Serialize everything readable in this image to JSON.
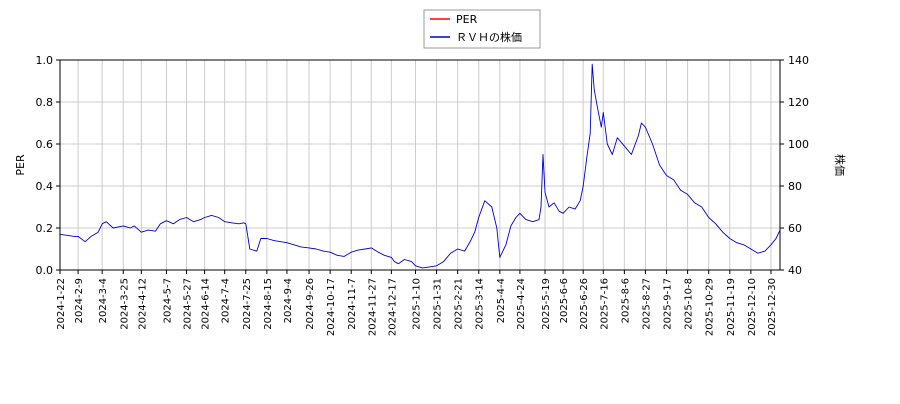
{
  "chart_data": {
    "type": "line",
    "title": "",
    "legend": {
      "placement": "top-center",
      "entries": [
        {
          "name": "PER",
          "color": "#ff0000"
        },
        {
          "name": "ＲＶＨの株価",
          "color": "#0000cd"
        }
      ]
    },
    "grid": true,
    "y_left": {
      "label": "PER",
      "ylim": [
        0.0,
        1.0
      ],
      "ticks": [
        "0.0",
        "0.2",
        "0.4",
        "0.6",
        "0.8",
        "1.0"
      ]
    },
    "y_right": {
      "label": "株価",
      "ylim": [
        40,
        140
      ],
      "ticks": [
        "40",
        "60",
        "80",
        "100",
        "120",
        "140"
      ]
    },
    "x": {
      "xlim": [
        "2024-01-22",
        "2026-01-08"
      ],
      "ticks": [
        "2024-1-22",
        "2024-2-9",
        "2024-3-4",
        "2024-3-25",
        "2024-4-12",
        "2024-5-7",
        "2024-5-27",
        "2024-6-14",
        "2024-7-4",
        "2024-7-25",
        "2024-8-15",
        "2024-9-4",
        "2024-9-26",
        "2024-10-17",
        "2024-11-7",
        "2024-11-27",
        "2024-12-17",
        "2025-1-10",
        "2025-1-31",
        "2025-2-21",
        "2025-3-14",
        "2025-4-4",
        "2025-4-24",
        "2025-5-19",
        "2025-6-6",
        "2025-6-26",
        "2025-7-16",
        "2025-8-6",
        "2025-8-27",
        "2025-9-17",
        "2025-10-8",
        "2025-10-29",
        "2025-11-19",
        "2025-12-10",
        "2025-12-30"
      ]
    },
    "series": [
      {
        "name": "ＲＶＨの株価",
        "axis": "right",
        "color": "#0000cd",
        "points": [
          [
            "2024-01-22",
            57
          ],
          [
            "2024-01-29",
            56.5
          ],
          [
            "2024-02-05",
            56
          ],
          [
            "2024-02-09",
            56
          ],
          [
            "2024-02-16",
            53.5
          ],
          [
            "2024-02-22",
            56
          ],
          [
            "2024-02-29",
            58
          ],
          [
            "2024-03-04",
            62
          ],
          [
            "2024-03-08",
            63
          ],
          [
            "2024-03-15",
            60
          ],
          [
            "2024-03-20",
            60.5
          ],
          [
            "2024-03-25",
            61
          ],
          [
            "2024-04-01",
            60
          ],
          [
            "2024-04-05",
            61
          ],
          [
            "2024-04-12",
            58
          ],
          [
            "2024-04-19",
            59
          ],
          [
            "2024-04-26",
            58.5
          ],
          [
            "2024-05-01",
            62
          ],
          [
            "2024-05-07",
            63.5
          ],
          [
            "2024-05-14",
            62
          ],
          [
            "2024-05-20",
            64
          ],
          [
            "2024-05-27",
            65
          ],
          [
            "2024-06-03",
            63
          ],
          [
            "2024-06-10",
            64
          ],
          [
            "2024-06-14",
            65
          ],
          [
            "2024-06-21",
            66
          ],
          [
            "2024-06-28",
            65
          ],
          [
            "2024-07-04",
            63
          ],
          [
            "2024-07-11",
            62.5
          ],
          [
            "2024-07-18",
            62
          ],
          [
            "2024-07-23",
            62.5
          ],
          [
            "2024-07-25",
            62
          ],
          [
            "2024-07-29",
            50
          ],
          [
            "2024-08-05",
            49
          ],
          [
            "2024-08-09",
            55
          ],
          [
            "2024-08-15",
            55
          ],
          [
            "2024-08-22",
            54
          ],
          [
            "2024-08-29",
            53.5
          ],
          [
            "2024-09-04",
            53
          ],
          [
            "2024-09-11",
            52
          ],
          [
            "2024-09-18",
            51
          ],
          [
            "2024-09-26",
            50.5
          ],
          [
            "2024-10-03",
            50
          ],
          [
            "2024-10-10",
            49
          ],
          [
            "2024-10-17",
            48.5
          ],
          [
            "2024-10-24",
            47
          ],
          [
            "2024-10-31",
            46.5
          ],
          [
            "2024-11-07",
            48.5
          ],
          [
            "2024-11-14",
            49.5
          ],
          [
            "2024-11-21",
            50
          ],
          [
            "2024-11-27",
            50.5
          ],
          [
            "2024-12-04",
            48.5
          ],
          [
            "2024-12-10",
            47
          ],
          [
            "2024-12-17",
            46
          ],
          [
            "2024-12-20",
            44
          ],
          [
            "2024-12-24",
            43
          ],
          [
            "2024-12-30",
            45
          ],
          [
            "2025-01-06",
            44
          ],
          [
            "2025-01-10",
            42
          ],
          [
            "2025-01-17",
            41
          ],
          [
            "2025-01-24",
            41.5
          ],
          [
            "2025-01-31",
            42
          ],
          [
            "2025-02-07",
            44
          ],
          [
            "2025-02-14",
            48
          ],
          [
            "2025-02-21",
            50
          ],
          [
            "2025-02-28",
            49
          ],
          [
            "2025-03-06",
            54
          ],
          [
            "2025-03-10",
            58
          ],
          [
            "2025-03-14",
            65
          ],
          [
            "2025-03-20",
            73
          ],
          [
            "2025-03-27",
            70
          ],
          [
            "2025-04-01",
            60
          ],
          [
            "2025-04-04",
            46
          ],
          [
            "2025-04-10",
            52
          ],
          [
            "2025-04-15",
            61
          ],
          [
            "2025-04-20",
            65
          ],
          [
            "2025-04-24",
            67
          ],
          [
            "2025-04-30",
            64
          ],
          [
            "2025-05-07",
            63
          ],
          [
            "2025-05-13",
            64
          ],
          [
            "2025-05-15",
            70
          ],
          [
            "2025-05-17",
            95
          ],
          [
            "2025-05-19",
            77
          ],
          [
            "2025-05-23",
            70
          ],
          [
            "2025-05-28",
            72
          ],
          [
            "2025-06-02",
            68
          ],
          [
            "2025-06-06",
            67
          ],
          [
            "2025-06-12",
            70
          ],
          [
            "2025-06-18",
            69
          ],
          [
            "2025-06-23",
            73
          ],
          [
            "2025-06-26",
            80
          ],
          [
            "2025-06-30",
            95
          ],
          [
            "2025-07-03",
            105
          ],
          [
            "2025-07-05",
            138
          ],
          [
            "2025-07-07",
            126
          ],
          [
            "2025-07-10",
            118
          ],
          [
            "2025-07-14",
            108
          ],
          [
            "2025-07-16",
            115
          ],
          [
            "2025-07-20",
            100
          ],
          [
            "2025-07-25",
            95
          ],
          [
            "2025-07-30",
            103
          ],
          [
            "2025-08-06",
            99
          ],
          [
            "2025-08-13",
            95
          ],
          [
            "2025-08-20",
            104
          ],
          [
            "2025-08-23",
            110
          ],
          [
            "2025-08-27",
            108
          ],
          [
            "2025-09-03",
            100
          ],
          [
            "2025-09-10",
            90
          ],
          [
            "2025-09-17",
            85
          ],
          [
            "2025-09-24",
            83
          ],
          [
            "2025-10-01",
            78
          ],
          [
            "2025-10-08",
            76
          ],
          [
            "2025-10-15",
            72
          ],
          [
            "2025-10-22",
            70
          ],
          [
            "2025-10-29",
            65
          ],
          [
            "2025-11-05",
            62
          ],
          [
            "2025-11-12",
            58
          ],
          [
            "2025-11-19",
            55
          ],
          [
            "2025-11-26",
            53
          ],
          [
            "2025-12-03",
            52
          ],
          [
            "2025-12-10",
            50
          ],
          [
            "2025-12-17",
            48
          ],
          [
            "2025-12-24",
            49
          ],
          [
            "2025-12-30",
            52
          ],
          [
            "2026-01-04",
            55
          ],
          [
            "2026-01-08",
            59
          ]
        ]
      },
      {
        "name": "PER",
        "axis": "left",
        "color": "#ff0000",
        "points": []
      }
    ]
  }
}
